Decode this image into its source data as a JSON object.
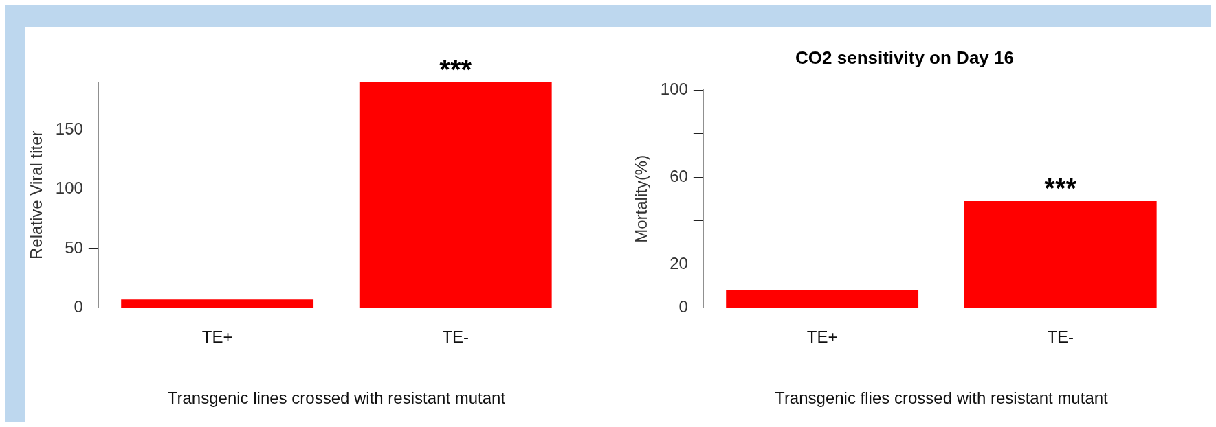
{
  "chart_data": [
    {
      "type": "bar",
      "ylabel": "Relative Viral titer",
      "xlabel": "Transgenic lines crossed with resistant mutant",
      "categories": [
        "TE+",
        "TE-"
      ],
      "values": [
        7,
        190
      ],
      "color": "#ff0000",
      "ylim": [
        0,
        190
      ],
      "yticks": [
        0,
        50,
        100,
        150
      ],
      "grid": false,
      "legend": false,
      "annotations": [
        {
          "text": "***",
          "x": "TE-",
          "y": 190
        }
      ]
    },
    {
      "type": "bar",
      "title": "CO2 sensitivity on Day 16",
      "ylabel": "Mortality(%)",
      "xlabel": "Transgenic flies crossed with resistant mutant",
      "categories": [
        "TE+",
        "TE-"
      ],
      "values": [
        8,
        49
      ],
      "color": "#ff0000",
      "ylim": [
        0,
        100
      ],
      "yticks": [
        0,
        20,
        {
          "value": 40,
          "label": null
        },
        60,
        {
          "value": 80,
          "label": null
        },
        100
      ],
      "grid": false,
      "legend": false,
      "annotations": [
        {
          "text": "***",
          "x": "TE-",
          "y": 49
        }
      ]
    }
  ]
}
